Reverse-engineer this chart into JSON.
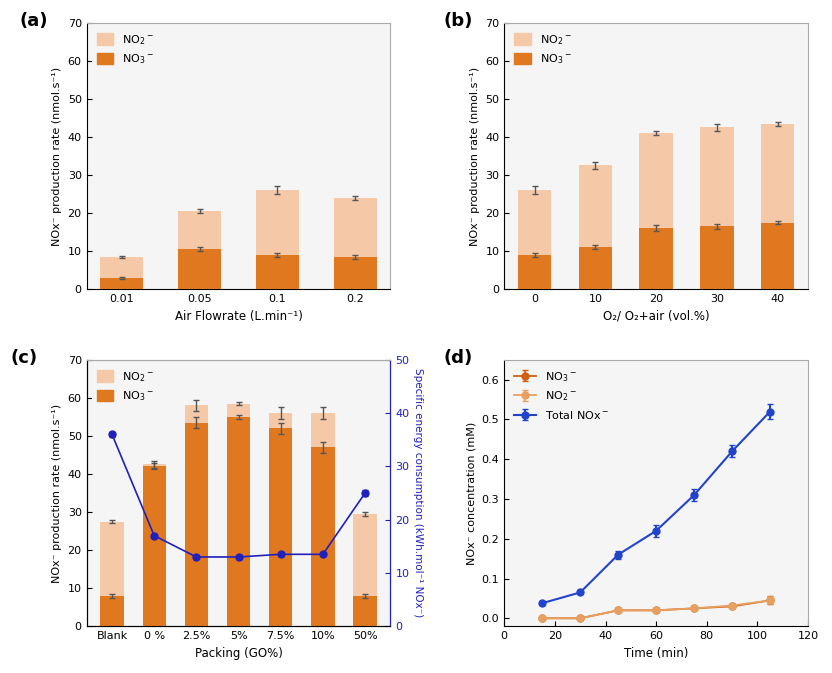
{
  "panel_a": {
    "categories": [
      "0.01",
      "0.05",
      "0.1",
      "0.2"
    ],
    "xlabel": "Air Flowrate (L.min⁻¹)",
    "ylabel": "NOx⁻ production rate (nmol.s⁻¹)",
    "no2_total": [
      8.5,
      20.5,
      26.0,
      24.0
    ],
    "no3_values": [
      3.0,
      10.5,
      9.0,
      8.5
    ],
    "no2_err": [
      0.3,
      0.5,
      1.0,
      0.5
    ],
    "no3_err": [
      0.3,
      0.5,
      0.5,
      0.5
    ],
    "ylim": [
      0,
      70
    ],
    "yticks": [
      0,
      10,
      20,
      30,
      40,
      50,
      60,
      70
    ],
    "label": "(a)"
  },
  "panel_b": {
    "categories": [
      "0",
      "10",
      "20",
      "30",
      "40"
    ],
    "xlabel": "O₂/ O₂+air (vol.%)",
    "ylabel": "NOx⁻ production rate (nmol.s⁻¹)",
    "no2_total": [
      26.0,
      32.5,
      41.0,
      42.5,
      43.5
    ],
    "no3_values": [
      9.0,
      11.0,
      16.0,
      16.5,
      17.5
    ],
    "no2_err": [
      1.0,
      1.0,
      0.5,
      1.0,
      0.5
    ],
    "no3_err": [
      0.5,
      0.5,
      0.8,
      0.7,
      0.5
    ],
    "ylim": [
      0,
      70
    ],
    "yticks": [
      0,
      10,
      20,
      30,
      40,
      50,
      60,
      70
    ],
    "label": "(b)"
  },
  "panel_c": {
    "categories": [
      "Blank",
      "0 %",
      "2.5%",
      "5%",
      "7.5%",
      "10%",
      "50%"
    ],
    "xlabel": "Packing (GO%)",
    "ylabel_left": "NOx⁻ production rate (nmol.s⁻¹)",
    "ylabel_right": "Specific energy consumption (kWh.mol⁻¹ NOx⁻)",
    "no2_total": [
      27.5,
      42.5,
      58.0,
      58.5,
      56.0,
      56.0,
      29.5
    ],
    "no3_values": [
      8.0,
      42.0,
      53.5,
      55.0,
      52.0,
      47.0,
      8.0
    ],
    "no2_err": [
      0.5,
      0.8,
      1.5,
      0.5,
      1.5,
      1.5,
      0.5
    ],
    "no3_err": [
      0.5,
      0.8,
      1.5,
      0.5,
      1.5,
      1.5,
      0.5
    ],
    "energy": [
      36.0,
      17.0,
      13.0,
      13.0,
      13.5,
      13.5,
      25.0
    ],
    "energy_err": [
      0.5,
      0.3,
      0.3,
      0.3,
      0.3,
      0.3,
      0.5
    ],
    "ylim_left": [
      0,
      70
    ],
    "ylim_right": [
      0,
      50
    ],
    "yticks_left": [
      0,
      10,
      20,
      30,
      40,
      50,
      60,
      70
    ],
    "yticks_right": [
      0,
      10,
      20,
      30,
      40,
      50
    ],
    "label": "(c)"
  },
  "panel_d": {
    "xlabel": "Time (min)",
    "ylabel": "NOx⁻ concentration (mM)",
    "time": [
      15,
      30,
      45,
      60,
      75,
      90,
      105
    ],
    "no3_conc": [
      0.0,
      0.0,
      0.02,
      0.02,
      0.025,
      0.03,
      0.045
    ],
    "no2_conc": [
      0.0,
      0.0,
      0.02,
      0.02,
      0.025,
      0.032,
      0.045
    ],
    "total_conc": [
      0.038,
      0.065,
      0.16,
      0.22,
      0.31,
      0.42,
      0.52
    ],
    "no3_err": [
      0.002,
      0.002,
      0.005,
      0.005,
      0.005,
      0.005,
      0.01
    ],
    "no2_err": [
      0.002,
      0.002,
      0.005,
      0.005,
      0.005,
      0.005,
      0.01
    ],
    "total_err": [
      0.005,
      0.005,
      0.01,
      0.015,
      0.015,
      0.015,
      0.02
    ],
    "xlim": [
      0,
      120
    ],
    "ylim": [
      -0.02,
      0.65
    ],
    "xticks": [
      0,
      20,
      40,
      60,
      80,
      100,
      120
    ],
    "yticks": [
      0.0,
      0.1,
      0.2,
      0.3,
      0.4,
      0.5,
      0.6
    ],
    "label": "(d)"
  },
  "color_no2_bar": "#F5C9A8",
  "color_no3_bar": "#E07820",
  "color_energy_line": "#2020BB",
  "color_no3_line": "#D06010",
  "color_no2_line": "#E8A060",
  "color_total_line": "#2244CC",
  "bg_color": "#F5F5F5"
}
